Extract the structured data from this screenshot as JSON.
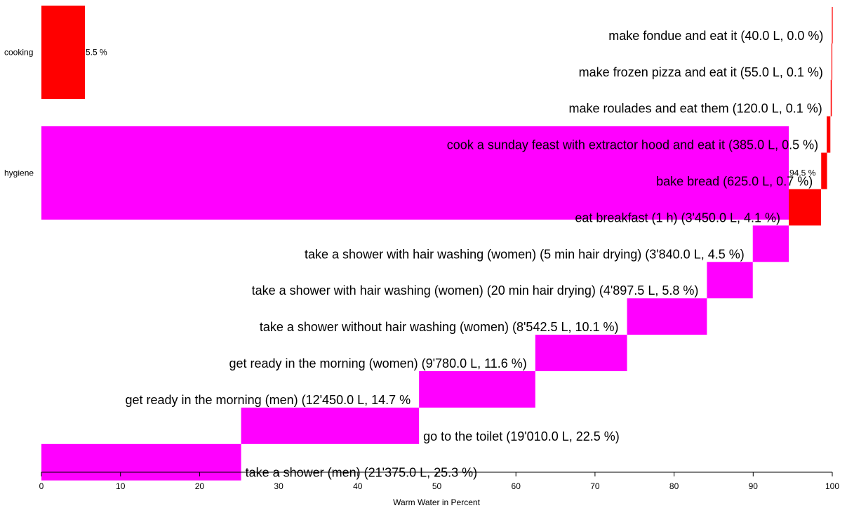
{
  "chart_data": {
    "type": "bar",
    "xlabel": "Warm Water in Percent",
    "xlim": [
      0,
      100
    ],
    "xticks": [
      0,
      10,
      20,
      30,
      40,
      50,
      60,
      70,
      80,
      90,
      100
    ],
    "colors": {
      "cooking": "#ff0000",
      "hygiene": "#ff00ff"
    },
    "categories": [
      {
        "name": "cooking",
        "value": 5.5,
        "label": "5.5 %",
        "color": "cooking"
      },
      {
        "name": "hygiene",
        "value": 94.5,
        "label": "94.5 %",
        "color": "hygiene"
      }
    ],
    "waterfall": [
      {
        "label": "make fondue and eat it (40.0 L, 0.0 %)",
        "start": 99.95,
        "value": 0.05,
        "color": "cooking"
      },
      {
        "label": "make frozen pizza and eat it (55.0 L, 0.1 %)",
        "start": 99.9,
        "value": 0.07,
        "color": "cooking"
      },
      {
        "label": "make roulades and eat them (120.0 L, 0.1 %)",
        "start": 99.8,
        "value": 0.14,
        "color": "cooking"
      },
      {
        "label": "cook a sunday feast with extractor hood and eat it (385.0 L, 0.5 %)",
        "start": 99.3,
        "value": 0.46,
        "color": "cooking"
      },
      {
        "label": "bake bread (625.0 L, 0.7 %)",
        "start": 98.6,
        "value": 0.74,
        "color": "cooking"
      },
      {
        "label": "eat breakfast (1 h) (3'450.0 L, 4.1 %)",
        "start": 94.5,
        "value": 4.08,
        "color": "cooking"
      },
      {
        "label": "take a shower with hair washing (women) (5 min hair drying) (3'840.0 L, 4.5 %)",
        "start": 89.95,
        "value": 4.55,
        "color": "hygiene"
      },
      {
        "label": "take a shower with hair washing (women) (20 min hair drying) (4'897.5 L, 5.8 %)",
        "start": 84.15,
        "value": 5.8,
        "color": "hygiene"
      },
      {
        "label": "take a shower without hair washing (women) (8'542.5 L, 10.1 %)",
        "start": 74.05,
        "value": 10.1,
        "color": "hygiene"
      },
      {
        "label": "get ready in the morning (women) (9'780.0 L, 11.6 %)",
        "start": 62.45,
        "value": 11.6,
        "color": "hygiene"
      },
      {
        "label": "get ready in the morning (men) (12'450.0 L, 14.7 %",
        "start": 47.75,
        "value": 14.7,
        "color": "hygiene"
      },
      {
        "label": "go to the toilet (19'010.0 L, 22.5 %)",
        "start": 25.25,
        "value": 22.5,
        "color": "hygiene"
      },
      {
        "label": "take a shower (men) (21'375.0 L, 25.3 %)",
        "start": 0,
        "value": 25.25,
        "color": "hygiene"
      }
    ]
  }
}
